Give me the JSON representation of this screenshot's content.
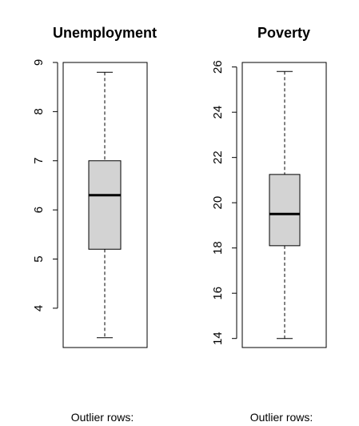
{
  "chart_data": [
    {
      "type": "boxplot",
      "title": "Unemployment",
      "ylim": [
        3.2,
        9.0
      ],
      "ticks": [
        4,
        5,
        6,
        7,
        8,
        9
      ],
      "tick_labels": [
        "4",
        "5",
        "6",
        "7",
        "8",
        "9"
      ],
      "box": {
        "min": 3.4,
        "q1": 5.2,
        "median": 6.3,
        "q3": 7.0,
        "max": 8.8
      },
      "footer": "Outlier rows:"
    },
    {
      "type": "boxplot",
      "title": "Poverty",
      "ylim": [
        13.6,
        26.2
      ],
      "ticks": [
        14,
        16,
        18,
        20,
        22,
        24,
        26
      ],
      "tick_labels": [
        "14",
        "16",
        "18",
        "20",
        "22",
        "24",
        "26"
      ],
      "box": {
        "min": 14.0,
        "q1": 18.1,
        "median": 19.5,
        "q3": 21.25,
        "max": 25.8
      },
      "footer": "Outlier rows:"
    }
  ],
  "colors": {
    "box_fill": "#d3d3d3",
    "stroke": "#000000"
  }
}
